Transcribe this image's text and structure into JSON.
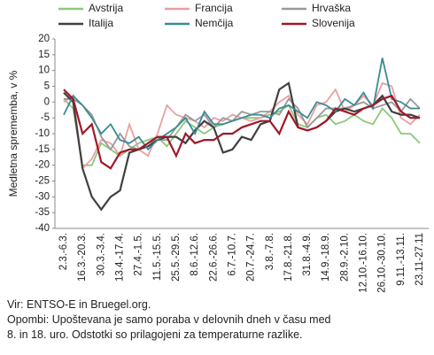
{
  "chart_data": {
    "type": "line",
    "ylabel": "Medletna sprememba, v %",
    "categories": [
      "2.3.-6.3.",
      null,
      "16.3.-20.3.",
      null,
      "30.3.-3.4.",
      null,
      "13.4.-17.4.",
      null,
      "27.4.-1.5.",
      null,
      "11.5.-15.5.",
      null,
      "25.5.-29.5.",
      null,
      "8.6.-12.6.",
      null,
      "22.6.-26.6.",
      null,
      "6.7.-10.7.",
      null,
      "20.7.-24.7.",
      null,
      "3.8.-7.8.",
      null,
      "17.8.-21.8.",
      null,
      "31.8.-4.9.",
      null,
      "14.9.-18.9.",
      null,
      "28.9.-2.10.",
      null,
      "12.10.-16.10.",
      null,
      "26.10.-30.10.",
      null,
      "9.11.-13.11.",
      null,
      "23.11-27.11"
    ],
    "series": [
      {
        "name": "Avstrija",
        "color": "#8dc87a",
        "values": [
          1,
          -2,
          -20,
          -20,
          -13,
          -15,
          -17,
          -15,
          -13,
          -12,
          -11,
          -14,
          -10,
          -6,
          -8,
          -10,
          -8,
          -7,
          -6,
          -5,
          -5,
          -5,
          -4,
          -3,
          -1,
          -7,
          -8,
          -5,
          -4,
          -7,
          -6,
          -4,
          -6,
          -7,
          -2,
          -5,
          -10,
          -10,
          -13
        ]
      },
      {
        "name": "Francija",
        "color": "#e8a0a0",
        "values": [
          0,
          2,
          -21,
          -18,
          -12,
          -13,
          -17,
          -7,
          -15,
          -17,
          -10,
          -1,
          -4,
          -5,
          -6,
          -8,
          -5,
          -6,
          -4,
          -5,
          -6,
          -5,
          -3,
          0,
          2,
          -4,
          -7,
          -1,
          0,
          4,
          -3,
          -1,
          2,
          -1,
          6,
          5,
          -5,
          -7,
          -4
        ]
      },
      {
        "name": "Hrvaška",
        "color": "#999999",
        "values": [
          1,
          1,
          -1,
          -4,
          -11,
          -15,
          -10,
          -14,
          -15,
          -13,
          -12,
          -12,
          -8,
          -4,
          -6,
          -4,
          -8,
          -5,
          -6,
          -3,
          -4,
          -3,
          -3,
          -4,
          1,
          -2,
          -8,
          -5,
          -2,
          -2,
          -2,
          -1,
          0,
          -2,
          -1,
          0,
          -3,
          1,
          -2
        ]
      },
      {
        "name": "Italija",
        "color": "#404040",
        "values": [
          3,
          0,
          -21,
          -30,
          -34,
          -30,
          -28,
          -16,
          -15,
          -14,
          -12,
          -11,
          -11,
          -13,
          -9,
          -6,
          -8,
          -16,
          -15,
          -11,
          -12,
          -7,
          -6,
          4,
          6,
          -8,
          -9,
          -8,
          -6,
          -3,
          -2,
          -3,
          -2,
          -1,
          2,
          -3,
          -4,
          -4,
          -5
        ]
      },
      {
        "name": "Nemčija",
        "color": "#3a8a94",
        "values": [
          -4,
          2,
          -1,
          -5,
          -10,
          -7,
          -12,
          -13,
          -11,
          -15,
          -12,
          -10,
          -8,
          -5,
          -10,
          -3,
          -7,
          -7,
          -6,
          -5,
          -4,
          -4,
          -5,
          -2,
          -1,
          -3,
          -5,
          0,
          -1,
          -3,
          1,
          -1,
          3,
          -2,
          14,
          1,
          0,
          -2,
          -2
        ]
      },
      {
        "name": "Slovenija",
        "color": "#a0182a",
        "values": [
          4,
          1,
          -10,
          -7,
          -19,
          -21,
          -16,
          -15,
          -15,
          -13,
          -11,
          -11,
          -17,
          -10,
          -13,
          -12,
          -12,
          -10,
          -10,
          -8,
          -7,
          -6,
          -6,
          -10,
          -3,
          -8,
          -9,
          -8,
          -6,
          -2,
          -3,
          -4,
          -2,
          -1,
          1,
          2,
          -3,
          -5,
          -5
        ]
      }
    ],
    "ylim": [
      -40,
      20
    ],
    "yticks": [
      20,
      15,
      10,
      5,
      0,
      -5,
      -10,
      -15,
      -20,
      -25,
      -30,
      -35,
      -40
    ],
    "legend": "top",
    "footer": [
      "Vir: ENTSO-E in Bruegel.org.",
      "Opombi: Upoštevana je samo poraba v delovnih dneh v času med",
      "8. in 18. uro. Odstotki so prilagojeni za temperaturne razlike."
    ]
  }
}
